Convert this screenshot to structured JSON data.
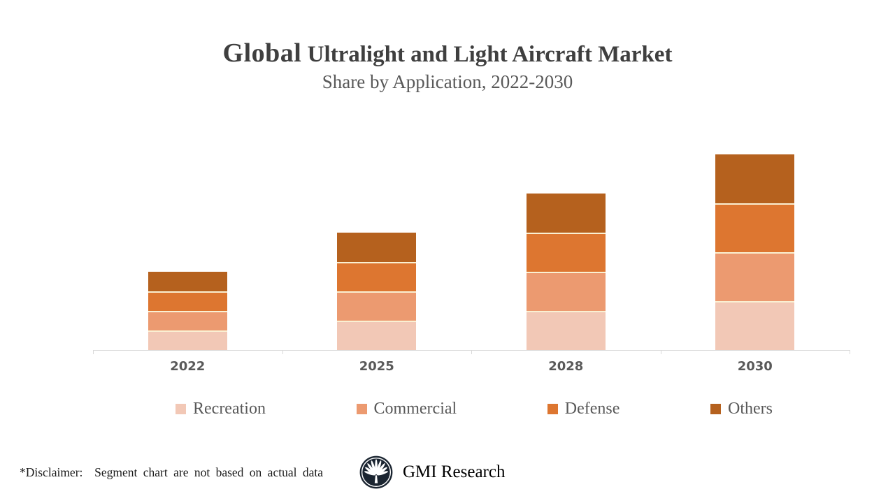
{
  "title": {
    "prefix": "Global",
    "rest": " Ultralight and Light Aircraft Market",
    "subtitle": "Share by Application, 2022-2030"
  },
  "chart_data": {
    "type": "bar",
    "stacked": true,
    "title": "Global Ultralight and Light Aircraft Market Share by Application, 2022-2030",
    "categories": [
      "2022",
      "2025",
      "2028",
      "2030"
    ],
    "series": [
      {
        "name": "Recreation",
        "color": "#F2C8B6",
        "values": [
          1,
          1.5,
          2,
          2.5
        ]
      },
      {
        "name": "Commercial",
        "color": "#EC9A70",
        "values": [
          1,
          1.5,
          2,
          2.5
        ]
      },
      {
        "name": "Defense",
        "color": "#DD7630",
        "values": [
          1,
          1.5,
          2,
          2.5
        ]
      },
      {
        "name": "Others",
        "color": "#B5611E",
        "values": [
          1,
          1.5,
          2,
          2.5
        ]
      }
    ],
    "units": "illustrative relative share (no value axis shown; segments not based on actual data)",
    "xlabel": "",
    "ylabel": "",
    "value_axis_visible": false,
    "gridlines": false,
    "legend_position": "bottom",
    "segment_separator_color": "#FAF0D2",
    "axis_line_color": "#D9D9D9"
  },
  "footer": {
    "disclaimer": "*Disclaimer:  Segment chart are not based on actual data",
    "brand": "GMI Research"
  },
  "style_colors": {
    "title_text": "#3F3F3F",
    "subtitle_text": "#595959",
    "category_label_text": "#595959",
    "legend_text": "#595959",
    "logo_navy": "#1B2531"
  }
}
